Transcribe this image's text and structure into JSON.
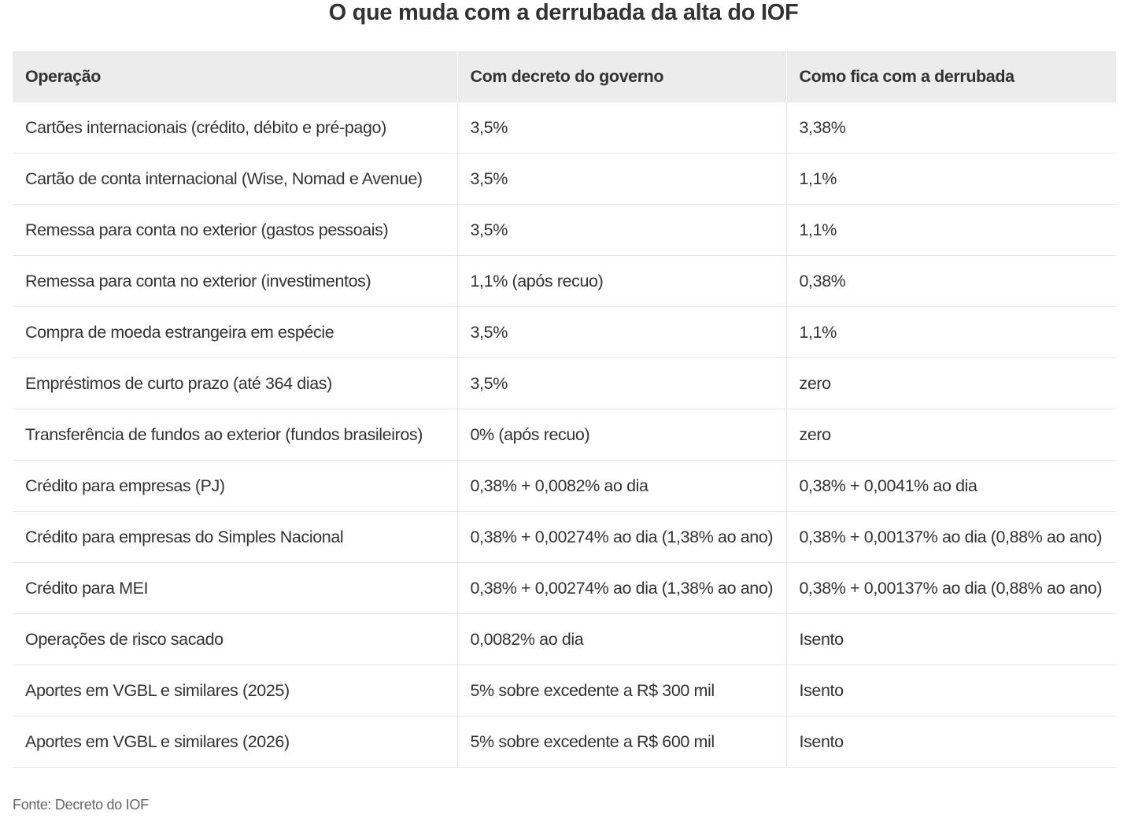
{
  "chart_data": {
    "type": "table",
    "title": "O que muda com a derrubada da alta do IOF",
    "columns": [
      "Operação",
      "Com decreto do governo",
      "Como fica com a derrubada"
    ],
    "rows": [
      [
        "Cartões internacionais (crédito, débito e pré-pago)",
        "3,5%",
        "3,38%"
      ],
      [
        "Cartão de conta internacional (Wise, Nomad e Avenue)",
        "3,5%",
        "1,1%"
      ],
      [
        "Remessa para conta no exterior (gastos pessoais)",
        "3,5%",
        "1,1%"
      ],
      [
        "Remessa para conta no exterior (investimentos)",
        "1,1% (após recuo)",
        "0,38%"
      ],
      [
        "Compra de moeda estrangeira em espécie",
        "3,5%",
        "1,1%"
      ],
      [
        "Empréstimos de curto prazo (até 364 dias)",
        "3,5%",
        "zero"
      ],
      [
        "Transferência de fundos ao exterior (fundos brasileiros)",
        "0% (após recuo)",
        "zero"
      ],
      [
        "Crédito para empresas (PJ)",
        "0,38% + 0,0082% ao dia",
        "0,38% + 0,0041% ao dia"
      ],
      [
        "Crédito para empresas do Simples Nacional",
        "0,38% + 0,00274% ao dia (1,38% ao ano)",
        "0,38% + 0,00137% ao dia (0,88% ao ano)"
      ],
      [
        "Crédito para MEI",
        "0,38% + 0,00274% ao dia (1,38% ao ano)",
        "0,38% + 0,00137% ao dia (0,88% ao ano)"
      ],
      [
        "Operações de risco sacado",
        "0,0082% ao dia",
        "Isento"
      ],
      [
        "Aportes em VGBL e similares (2025)",
        "5% sobre excedente a R$ 300 mil",
        "Isento"
      ],
      [
        "Aportes em VGBL e similares (2026)",
        "5% sobre excedente a R$ 600 mil",
        "Isento"
      ]
    ],
    "source": "Fonte: Decreto do IOF"
  },
  "colors": {
    "header_background": "#ececec",
    "text": "#333333",
    "row_border": "#e6e6e6",
    "source_text": "#666666"
  }
}
